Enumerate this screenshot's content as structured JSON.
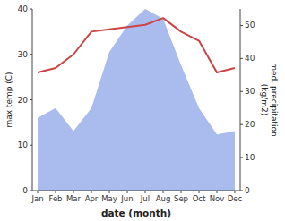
{
  "chart_data": {
    "type": "line",
    "xlabel": "date (month)",
    "ylabel": "max temp (C)",
    "y2label": "med. precipitation\n(kg/m2)",
    "categories": [
      "Jan",
      "Feb",
      "Mar",
      "Apr",
      "May",
      "Jun",
      "Jul",
      "Aug",
      "Sep",
      "Oct",
      "Nov",
      "Dec"
    ],
    "series": [
      {
        "type": "area",
        "axis": "y2",
        "color": "#aabbee",
        "values": [
          22,
          25,
          18,
          25,
          42,
          50,
          55,
          52,
          38,
          25,
          17,
          18
        ]
      },
      {
        "type": "line",
        "color": "#cc4444",
        "values": [
          26,
          27,
          30,
          35,
          35.5,
          36,
          36.5,
          38,
          35,
          33,
          26,
          27
        ]
      }
    ],
    "ylim": [
      0,
      40
    ],
    "yticks": [
      0,
      10,
      20,
      30,
      40
    ],
    "y2lim": [
      0,
      55
    ],
    "y2ticks": [
      0,
      10,
      20,
      30,
      40,
      50
    ],
    "grid": false
  }
}
